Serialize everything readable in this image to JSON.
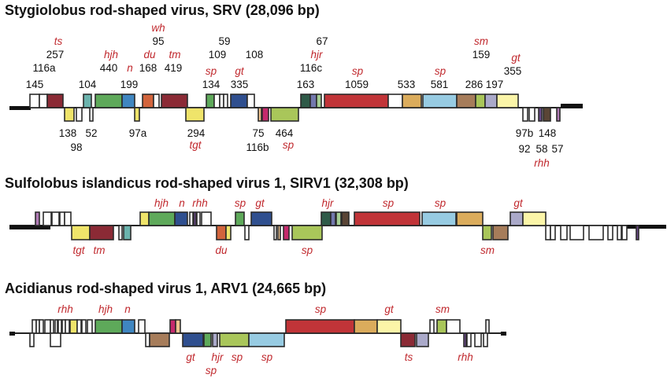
{
  "genomes": [
    {
      "id": "SRV",
      "title": "Stygiolobus rod-shaped virus, SRV (28,096 bp)",
      "terminals": [
        {
          "side": "left"
        },
        {
          "side": "right"
        }
      ],
      "orfs": [
        {
          "strand": "+",
          "color": "#ffffff",
          "label": "145"
        },
        {
          "strand": "+",
          "color": "#ffffff",
          "label": "116a"
        },
        {
          "strand": "+",
          "color": "#8b2a35",
          "label": "257",
          "func": "ts"
        },
        {
          "strand": "-",
          "color": "#efe46a",
          "label": "138"
        },
        {
          "strand": "-",
          "color": "#ffffff",
          "label": "98"
        },
        {
          "strand": "+",
          "color": "#6bb3ad",
          "label": "104"
        },
        {
          "strand": "-",
          "color": "#ffffff",
          "label": "52"
        },
        {
          "strand": "+",
          "color": "#5ea95a",
          "label": "440",
          "func": "hjh"
        },
        {
          "strand": "+",
          "color": "#3f86c1",
          "label": "199",
          "func": "n"
        },
        {
          "strand": "-",
          "color": "#efe46a",
          "label": "97a"
        },
        {
          "strand": "+",
          "color": "#d2643c",
          "label": "168",
          "func": "du"
        },
        {
          "strand": "+",
          "color": "#ffffff",
          "label": "95",
          "func": "wh"
        },
        {
          "strand": "+",
          "color": "#8b2a35",
          "label": "419",
          "func": "tm"
        },
        {
          "strand": "-",
          "color": "#efe46a",
          "label": "294",
          "func": "tgt"
        },
        {
          "strand": "+",
          "color": "#5ea95a",
          "label": "134",
          "func": "sp"
        },
        {
          "strand": "+",
          "color": "#ffffff",
          "label": "109"
        },
        {
          "strand": "+",
          "color": "#ffffff",
          "label": "59"
        },
        {
          "strand": "+",
          "color": "#2f4f8f",
          "label": "335",
          "func": "gt"
        },
        {
          "strand": "+",
          "color": "#ffffff",
          "label": "108"
        },
        {
          "strand": "-",
          "color": "#efc490",
          "label": "75"
        },
        {
          "strand": "-",
          "color": "#c52a6c",
          "label": "116b"
        },
        {
          "strand": "-",
          "color": "#a9c65a",
          "label": "464",
          "func": "sp"
        },
        {
          "strand": "+",
          "color": "#2e5a48",
          "label": "163"
        },
        {
          "strand": "+",
          "color": "#7378ad",
          "label": "116c",
          "func": "hjr"
        },
        {
          "strand": "+",
          "color": "#a6cf95",
          "label": "67"
        },
        {
          "strand": "+",
          "color": "#c13438",
          "label": "1059",
          "func": "sp"
        },
        {
          "strand": "+",
          "color": "#ffffff",
          "label": "533"
        },
        {
          "strand": "+",
          "color": "#dbac5c",
          "label": "533"
        },
        {
          "strand": "+",
          "color": "#97cbe2",
          "label": "581",
          "func": "sp"
        },
        {
          "strand": "+",
          "color": "#a67c5a",
          "label": "286"
        },
        {
          "strand": "+",
          "color": "#a9c65a",
          "label": "159",
          "func": "sm"
        },
        {
          "strand": "+",
          "color": "#aaa9c9",
          "label": "197"
        },
        {
          "strand": "+",
          "color": "#fbf5a8",
          "label": "355",
          "func": "gt"
        },
        {
          "strand": "-",
          "color": "#ffffff",
          "label": "97b"
        },
        {
          "strand": "-",
          "color": "#ffffff",
          "label": "92"
        },
        {
          "strand": "-",
          "color": "#6b4a8c",
          "label": "58"
        },
        {
          "strand": "-",
          "color": "#5a4536",
          "label": "148"
        },
        {
          "strand": "-",
          "color": "#b07ab5",
          "label": "57",
          "func": "rhh"
        }
      ]
    },
    {
      "id": "SIRV1",
      "title": "Sulfolobus islandicus rod-shaped virus 1, SIRV1 (32,308 bp)",
      "function_labels_top": [
        "hjh",
        "n",
        "rhh",
        "sp",
        "gt",
        "hjr",
        "sp",
        "sp",
        "gt"
      ],
      "function_labels_bottom": [
        "tgt",
        "tm",
        "du",
        "sp",
        "sm"
      ]
    },
    {
      "id": "ARV1",
      "title": "Acidianus rod-shaped virus 1, ARV1 (24,665 bp)",
      "function_labels_top": [
        "rhh",
        "hjh",
        "n",
        "sp",
        "gt",
        "sm"
      ],
      "function_labels_bottom": [
        "gt",
        "sp",
        "hjr",
        "sp",
        "sp",
        "ts",
        "rhh"
      ]
    }
  ],
  "legend_functions": {
    "ts": "ts",
    "hjh": "hjh",
    "n": "n",
    "du": "du",
    "wh": "wh",
    "tm": "tm",
    "tgt": "tgt",
    "sp": "sp",
    "gt": "gt",
    "hjr": "hjr",
    "sm": "sm",
    "rhh": "rhh"
  }
}
